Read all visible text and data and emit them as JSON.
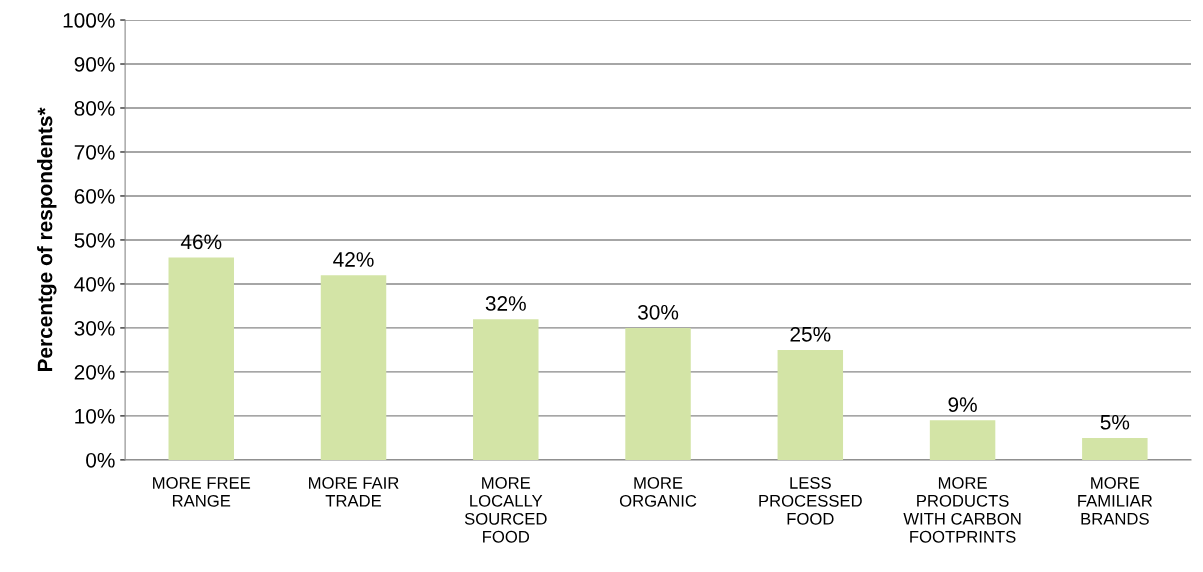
{
  "chart_data": {
    "type": "bar",
    "ylabel": "Percentge of respondents*",
    "categories": [
      "MORE FREE\nRANGE",
      "MORE FAIR\nTRADE",
      "MORE\nLOCALLY\nSOURCED\nFOOD",
      "MORE\nORGANIC",
      "LESS\nPROCESSED\nFOOD",
      "MORE\nPRODUCTS\nWITH CARBON\nFOOTPRINTS",
      "MORE\nFAMILIAR\nBRANDS"
    ],
    "values": [
      46,
      42,
      32,
      30,
      25,
      9,
      5
    ],
    "value_labels": [
      "46%",
      "42%",
      "32%",
      "30%",
      "25%",
      "9%",
      "5%"
    ],
    "color": "#d3e4a6",
    "ylim": [
      0,
      100
    ],
    "yticks": [
      {
        "value": 0,
        "label": "0%"
      },
      {
        "value": 10,
        "label": "10%"
      },
      {
        "value": 20,
        "label": "20%"
      },
      {
        "value": 30,
        "label": "30%"
      },
      {
        "value": 40,
        "label": "40%"
      },
      {
        "value": 50,
        "label": "50%"
      },
      {
        "value": 60,
        "label": "60%"
      },
      {
        "value": 70,
        "label": "70%"
      },
      {
        "value": 80,
        "label": "80%"
      },
      {
        "value": 90,
        "label": "90%"
      },
      {
        "value": 100,
        "label": "100%"
      }
    ],
    "grid": "y",
    "legend": false
  }
}
